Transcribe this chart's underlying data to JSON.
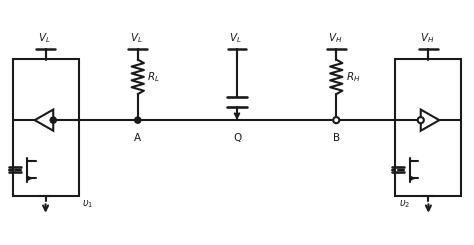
{
  "bg_color": "#ffffff",
  "line_color": "#1a1a1a",
  "lw": 1.5,
  "fig_w": 4.74,
  "fig_h": 2.45,
  "dpi": 100,
  "xlim": [
    0,
    10
  ],
  "ylim": [
    0,
    5.1
  ],
  "bus_y": 2.6,
  "lb_x0": 0.25,
  "lb_x1": 1.65,
  "lb_y0": 1.0,
  "lb_y1": 3.9,
  "rb_x0": 8.35,
  "rb_x1": 9.75,
  "rb_y0": 1.0,
  "rb_y1": 3.9,
  "a_x": 2.9,
  "q_x": 5.0,
  "b_x": 7.1,
  "vl_left_x": 0.95,
  "vl_rl_x": 2.9,
  "vl_q_x": 5.0,
  "vh_rh_x": 7.1,
  "vh_right_x": 9.05
}
